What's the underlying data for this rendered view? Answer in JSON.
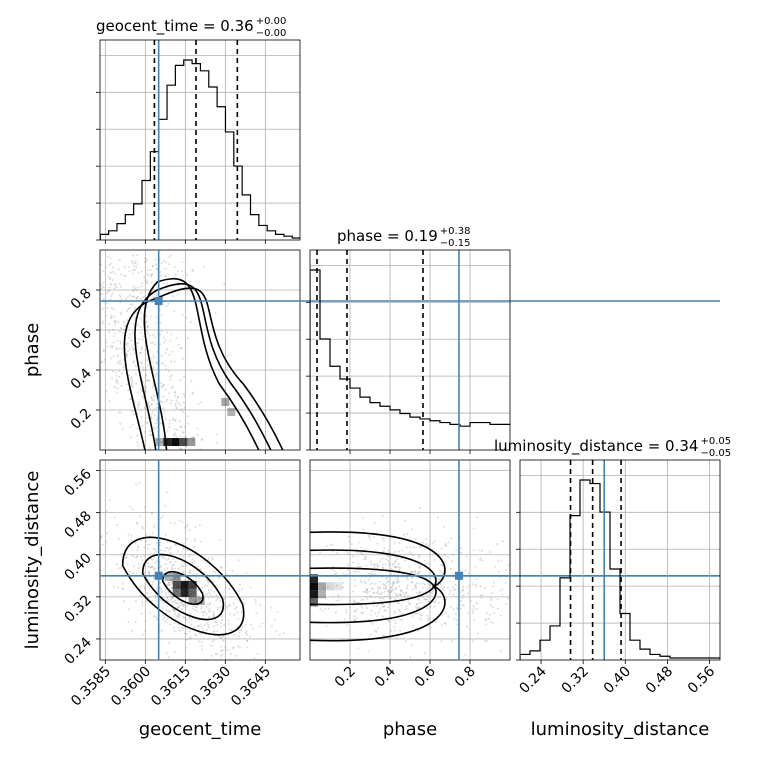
{
  "chart_data": {
    "type": "corner",
    "parameters": [
      "geocent_time",
      "phase",
      "luminosity_distance"
    ],
    "truths": {
      "geocent_time": 0.3605,
      "phase": 0.745,
      "luminosity_distance": 0.36
    },
    "titles": {
      "geocent_time": {
        "label": "geocent_time = 0.36",
        "plus": "+0.00",
        "minus": "−0.00"
      },
      "phase": {
        "label": "phase = 0.19",
        "plus": "+0.38",
        "minus": "−0.15"
      },
      "luminosity_distance": {
        "label": "luminosity_distance = 0.34",
        "plus": "+0.05",
        "minus": "−0.05"
      }
    },
    "ranges": {
      "geocent_time": [
        0.3583,
        0.3658
      ],
      "phase": [
        0.0,
        1.0
      ],
      "luminosity_distance": [
        0.2,
        0.58
      ]
    },
    "ticks": {
      "geocent_time": [
        0.3585,
        0.36,
        0.3615,
        0.363,
        0.3645
      ],
      "geocent_time_labels": [
        "0.3585",
        "0.3600",
        "0.3615",
        "0.3630",
        "0.3645"
      ],
      "phase": [
        0.2,
        0.4,
        0.6,
        0.8
      ],
      "phase_labels": [
        "0.2",
        "0.4",
        "0.6",
        "0.8"
      ],
      "luminosity_distance": [
        0.24,
        0.32,
        0.4,
        0.48,
        0.56
      ],
      "luminosity_distance_labels": [
        "0.24",
        "0.32",
        "0.40",
        "0.48",
        "0.56"
      ]
    },
    "axis_labels": {
      "x": [
        "geocent_time",
        "phase",
        "luminosity_distance"
      ],
      "y": [
        "phase",
        "luminosity_distance"
      ]
    },
    "quantiles": {
      "geocent_time": [
        0.36034,
        0.3619,
        0.36345
      ],
      "phase": [
        0.035,
        0.185,
        0.565
      ],
      "luminosity_distance": [
        0.296,
        0.338,
        0.392
      ]
    },
    "histograms": {
      "geocent_time": {
        "start": 0.35831,
        "step": 0.000313,
        "counts": [
          2,
          4,
          8,
          13,
          19,
          32,
          48,
          66,
          85,
          96,
          99,
          97,
          93,
          84,
          73,
          59,
          40,
          24,
          13,
          7,
          4,
          2,
          1,
          0
        ]
      },
      "phase": {
        "start": 0.0,
        "step": 0.05,
        "counts": [
          98,
          60,
          45,
          38,
          33,
          28,
          25,
          23,
          21,
          19,
          17,
          16,
          15,
          14,
          13,
          12,
          14,
          14,
          13,
          13
        ]
      },
      "luminosity_distance": {
        "start": 0.2,
        "step": 0.019,
        "counts": [
          2,
          4,
          10,
          18,
          45,
          80,
          100,
          98,
          82,
          50,
          25,
          10,
          5,
          2,
          1,
          0,
          0,
          0,
          0,
          0
        ]
      }
    },
    "joint_2d": [
      {
        "x": "geocent_time",
        "y": "phase",
        "peak": [
          0.3612,
          0.03
        ],
        "levels": 3
      },
      {
        "x": "geocent_time",
        "y": "luminosity_distance",
        "peak": [
          0.3614,
          0.335
        ],
        "levels": 3
      },
      {
        "x": "phase",
        "y": "luminosity_distance",
        "peak": [
          0.02,
          0.34
        ],
        "levels": 3
      }
    ],
    "colors": {
      "truth": "#4682b4",
      "hist": "#000000",
      "grid": "#b0b0b0"
    }
  }
}
